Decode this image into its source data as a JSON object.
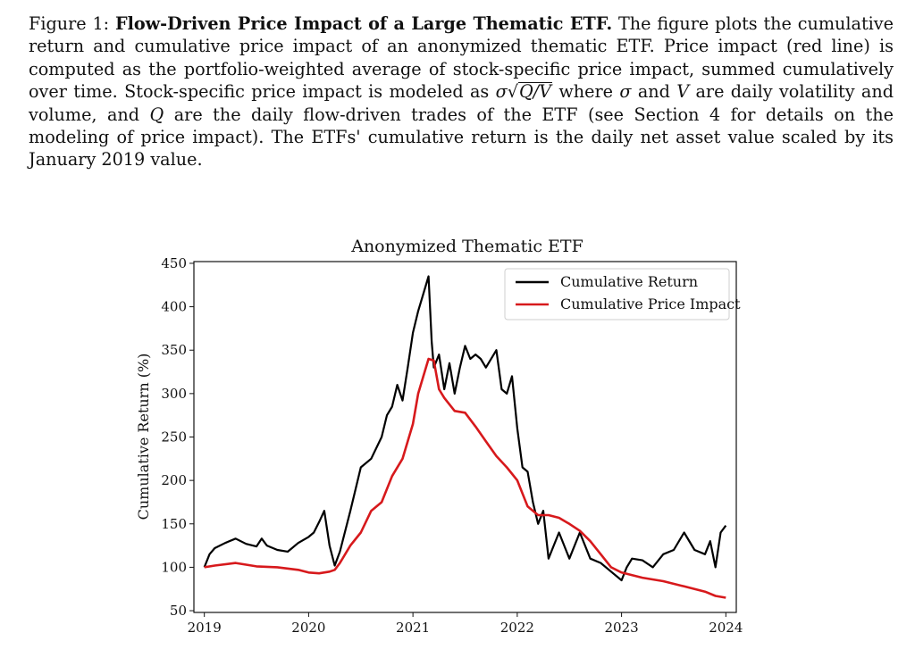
{
  "caption": {
    "label": "Figure 1:",
    "title": "Flow-Driven Price Impact of a Large Thematic ETF.",
    "part1": "The figure plots the cumulative return and cumulative price impact of an anonymized thematic ETF. Price impact (red line) is computed as the portfolio-weighted average of stock-specific price impact, summed cumulatively over time. Stock-specific price impact is modeled as",
    "formula_sigma": "σ",
    "formula_radicand": "Q/V",
    "part2": "where",
    "sym_sigma": "σ",
    "part3": "and",
    "sym_V": "V",
    "part4": "are daily volatility and volume, and",
    "sym_Q": "Q",
    "part5": "are the daily flow-driven trades of the ETF (see Section 4 for details on the modeling of price impact). The ETFs' cumulative return is the daily net asset value scaled by its January 2019 value."
  },
  "chart_data": {
    "type": "line",
    "title": "Anonymized Thematic ETF",
    "xlabel": "",
    "ylabel": "Cumulative Return (%)",
    "xlim": [
      2018.9,
      2024.1
    ],
    "ylim": [
      48,
      452
    ],
    "x_ticks": [
      "2019",
      "2020",
      "2021",
      "2022",
      "2023",
      "2024"
    ],
    "y_ticks": [
      "50",
      "100",
      "150",
      "200",
      "250",
      "300",
      "350",
      "400",
      "450"
    ],
    "legend_position": "top-right",
    "series": [
      {
        "name": "Cumulative Return",
        "color": "#000000",
        "points": [
          [
            2019.0,
            100
          ],
          [
            2019.05,
            115
          ],
          [
            2019.1,
            122
          ],
          [
            2019.2,
            128
          ],
          [
            2019.3,
            133
          ],
          [
            2019.4,
            127
          ],
          [
            2019.5,
            124
          ],
          [
            2019.55,
            133
          ],
          [
            2019.6,
            125
          ],
          [
            2019.7,
            120
          ],
          [
            2019.8,
            118
          ],
          [
            2019.9,
            128
          ],
          [
            2020.0,
            135
          ],
          [
            2020.05,
            140
          ],
          [
            2020.1,
            152
          ],
          [
            2020.15,
            165
          ],
          [
            2020.2,
            125
          ],
          [
            2020.25,
            102
          ],
          [
            2020.3,
            118
          ],
          [
            2020.4,
            165
          ],
          [
            2020.5,
            215
          ],
          [
            2020.6,
            225
          ],
          [
            2020.7,
            250
          ],
          [
            2020.75,
            275
          ],
          [
            2020.8,
            285
          ],
          [
            2020.85,
            310
          ],
          [
            2020.9,
            292
          ],
          [
            2020.95,
            330
          ],
          [
            2021.0,
            370
          ],
          [
            2021.05,
            395
          ],
          [
            2021.1,
            415
          ],
          [
            2021.15,
            435
          ],
          [
            2021.18,
            360
          ],
          [
            2021.2,
            330
          ],
          [
            2021.25,
            345
          ],
          [
            2021.3,
            305
          ],
          [
            2021.35,
            335
          ],
          [
            2021.4,
            300
          ],
          [
            2021.45,
            330
          ],
          [
            2021.5,
            355
          ],
          [
            2021.55,
            340
          ],
          [
            2021.6,
            345
          ],
          [
            2021.65,
            340
          ],
          [
            2021.7,
            330
          ],
          [
            2021.8,
            350
          ],
          [
            2021.85,
            305
          ],
          [
            2021.9,
            300
          ],
          [
            2021.95,
            320
          ],
          [
            2022.0,
            260
          ],
          [
            2022.05,
            215
          ],
          [
            2022.1,
            210
          ],
          [
            2022.15,
            175
          ],
          [
            2022.2,
            150
          ],
          [
            2022.25,
            165
          ],
          [
            2022.3,
            110
          ],
          [
            2022.35,
            125
          ],
          [
            2022.4,
            140
          ],
          [
            2022.5,
            110
          ],
          [
            2022.6,
            140
          ],
          [
            2022.7,
            110
          ],
          [
            2022.8,
            105
          ],
          [
            2022.9,
            95
          ],
          [
            2023.0,
            85
          ],
          [
            2023.05,
            100
          ],
          [
            2023.1,
            110
          ],
          [
            2023.2,
            108
          ],
          [
            2023.3,
            100
          ],
          [
            2023.4,
            115
          ],
          [
            2023.5,
            120
          ],
          [
            2023.6,
            140
          ],
          [
            2023.7,
            120
          ],
          [
            2023.8,
            115
          ],
          [
            2023.85,
            130
          ],
          [
            2023.9,
            100
          ],
          [
            2023.95,
            140
          ],
          [
            2024.0,
            148
          ]
        ]
      },
      {
        "name": "Cumulative Price Impact",
        "color": "#d7191c",
        "points": [
          [
            2019.0,
            100
          ],
          [
            2019.1,
            102
          ],
          [
            2019.3,
            105
          ],
          [
            2019.5,
            101
          ],
          [
            2019.7,
            100
          ],
          [
            2019.9,
            97
          ],
          [
            2020.0,
            94
          ],
          [
            2020.1,
            93
          ],
          [
            2020.2,
            95
          ],
          [
            2020.25,
            97
          ],
          [
            2020.3,
            105
          ],
          [
            2020.4,
            125
          ],
          [
            2020.5,
            140
          ],
          [
            2020.6,
            165
          ],
          [
            2020.7,
            175
          ],
          [
            2020.8,
            205
          ],
          [
            2020.9,
            225
          ],
          [
            2021.0,
            265
          ],
          [
            2021.05,
            300
          ],
          [
            2021.1,
            320
          ],
          [
            2021.15,
            340
          ],
          [
            2021.2,
            338
          ],
          [
            2021.25,
            305
          ],
          [
            2021.3,
            295
          ],
          [
            2021.4,
            280
          ],
          [
            2021.5,
            278
          ],
          [
            2021.6,
            262
          ],
          [
            2021.7,
            245
          ],
          [
            2021.8,
            228
          ],
          [
            2021.9,
            215
          ],
          [
            2022.0,
            200
          ],
          [
            2022.1,
            170
          ],
          [
            2022.2,
            160
          ],
          [
            2022.3,
            160
          ],
          [
            2022.4,
            157
          ],
          [
            2022.5,
            150
          ],
          [
            2022.6,
            142
          ],
          [
            2022.7,
            130
          ],
          [
            2022.8,
            115
          ],
          [
            2022.9,
            100
          ],
          [
            2023.0,
            94
          ],
          [
            2023.2,
            88
          ],
          [
            2023.4,
            84
          ],
          [
            2023.6,
            78
          ],
          [
            2023.8,
            72
          ],
          [
            2023.9,
            67
          ],
          [
            2024.0,
            65
          ]
        ]
      }
    ]
  }
}
